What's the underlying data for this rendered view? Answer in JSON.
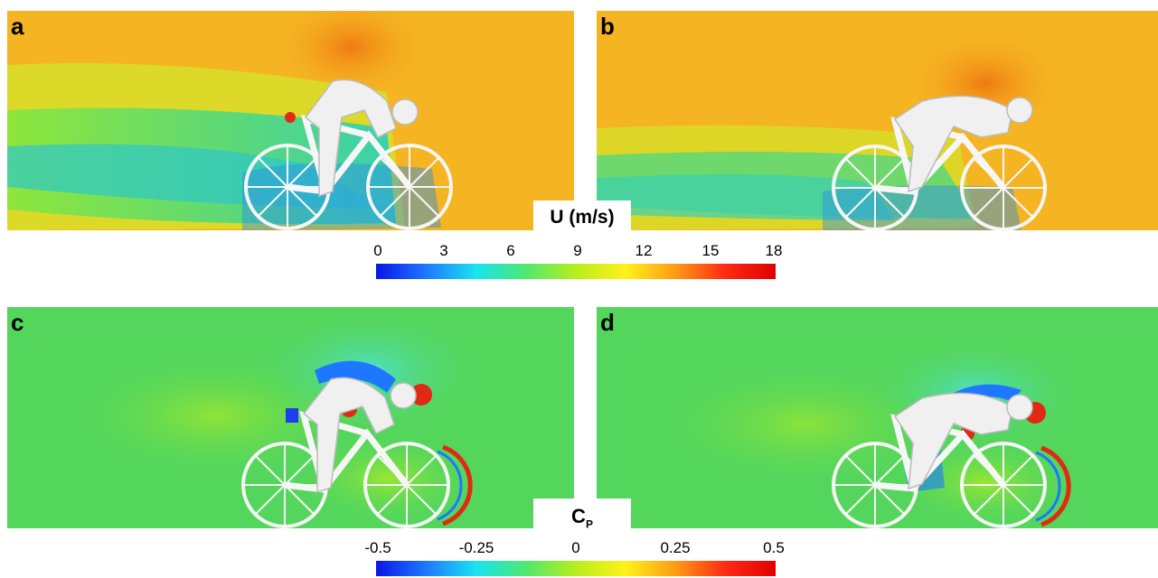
{
  "panels": [
    {
      "label": "a",
      "field": "velocity",
      "posture": "upright"
    },
    {
      "label": "b",
      "field": "velocity",
      "posture": "crouched"
    },
    {
      "label": "c",
      "field": "pressure",
      "posture": "upright"
    },
    {
      "label": "d",
      "field": "pressure",
      "posture": "crouched"
    }
  ],
  "colorbars": {
    "velocity": {
      "title": "U (m/s)",
      "ticks": [
        "0",
        "3",
        "6",
        "9",
        "12",
        "15",
        "18"
      ],
      "min": 0,
      "max": 18
    },
    "pressure": {
      "title_main": "C",
      "title_sub": "P",
      "ticks": [
        "-0.5",
        "-0.25",
        "0",
        "0.25",
        "0.5"
      ],
      "min": -0.5,
      "max": 0.5
    }
  },
  "colors": {
    "velocity_background": "#f5b422",
    "pressure_background": "#54d65c",
    "colormap": [
      "#0a14e6",
      "#1e78ff",
      "#18e4f0",
      "#4fe870",
      "#b8ee1e",
      "#fff21a",
      "#ff9a14",
      "#ff2a14",
      "#e00000"
    ]
  }
}
